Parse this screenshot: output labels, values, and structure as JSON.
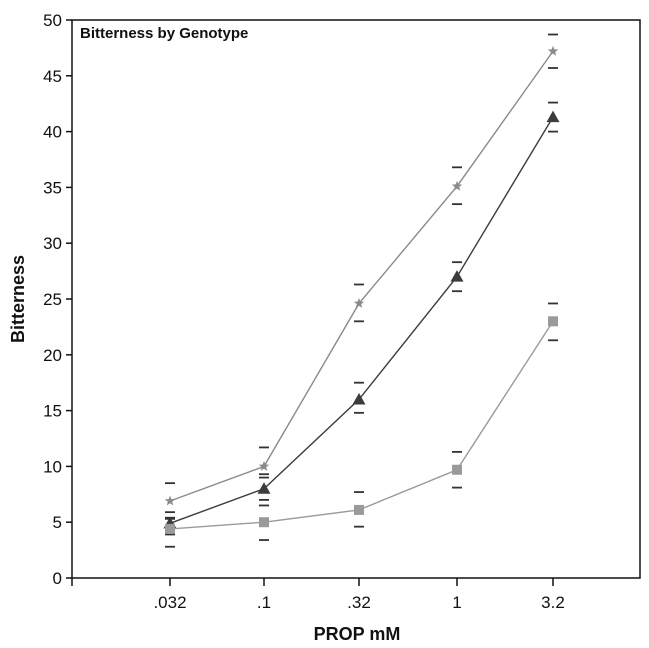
{
  "chart_data": {
    "type": "line",
    "title": "Bitterness by Genotype",
    "xlabel": "PROP mM",
    "ylabel": "Bitterness",
    "categories": [
      ".032",
      ".1",
      ".32",
      "1",
      "3.2"
    ],
    "ylim": [
      0,
      50
    ],
    "yticks": [
      "0",
      "5",
      "10",
      "15",
      "20",
      "25",
      "30",
      "35",
      "40",
      "45",
      "50"
    ],
    "grid": false,
    "legend": "none",
    "series": [
      {
        "marker": "star",
        "color": "#8a8a8a",
        "values": [
          6.9,
          10.0,
          24.6,
          35.1,
          47.2
        ],
        "error_upper": [
          8.5,
          11.7,
          26.3,
          36.8,
          48.7
        ],
        "error_lower": [
          5.4,
          9.3,
          23.0,
          33.5,
          45.7
        ]
      },
      {
        "marker": "triangle",
        "color": "#3c3c3c",
        "values": [
          4.9,
          8.0,
          16.0,
          27.0,
          41.3
        ],
        "error_upper": [
          5.9,
          9.0,
          17.5,
          28.3,
          42.6
        ],
        "error_lower": [
          3.9,
          7.0,
          14.8,
          25.7,
          40.0
        ]
      },
      {
        "marker": "square",
        "color": "#9a9a9a",
        "values": [
          4.4,
          5.0,
          6.1,
          9.7,
          23.0
        ],
        "error_upper": [
          5.3,
          6.5,
          7.7,
          11.3,
          24.6
        ],
        "error_lower": [
          2.8,
          3.4,
          4.6,
          8.1,
          21.3
        ]
      }
    ]
  }
}
